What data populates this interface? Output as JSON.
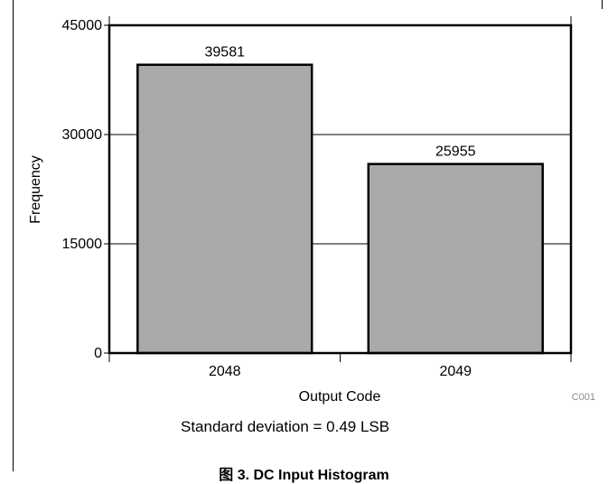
{
  "chart_data": {
    "type": "bar",
    "categories": [
      "2048",
      "2049"
    ],
    "values": [
      39581,
      25955
    ],
    "data_labels": [
      "39581",
      "25955"
    ],
    "xlabel": "Output Code",
    "ylabel": "Frequency",
    "ylim": [
      0,
      45000
    ],
    "yticks": [
      0,
      15000,
      30000,
      45000
    ],
    "ytick_labels": [
      "0",
      "15000",
      "30000",
      "45000"
    ],
    "grid": "horizontal",
    "bar_color": "#aaaaaa",
    "edge_color": "#000000"
  },
  "figure": {
    "footnote": "Standard deviation = 0.49 LSB",
    "caption": "图 3. DC Input Histogram",
    "code_label": "C001"
  }
}
